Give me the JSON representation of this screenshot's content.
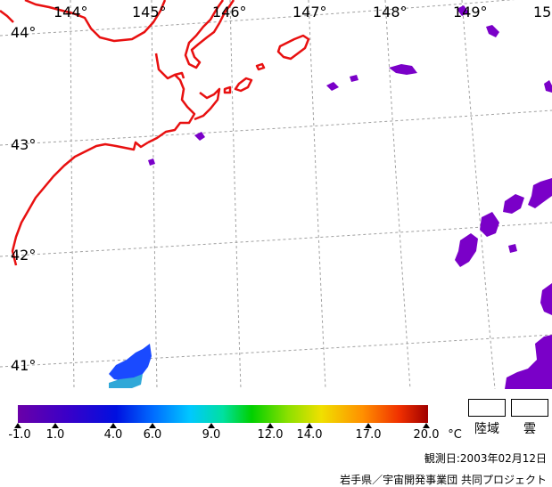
{
  "map": {
    "lon_labels": [
      "144°",
      "145°",
      "146°",
      "147°",
      "148°",
      "149°",
      "15"
    ],
    "lat_labels": [
      "44°",
      "43°",
      "42°",
      "41°"
    ]
  },
  "colorbar": {
    "ticks": [
      "-1.0",
      "1.0",
      "4.0",
      "6.0",
      "9.0",
      "12.0",
      "14.0",
      "17.0",
      "20.0"
    ],
    "unit": "°C",
    "colors": [
      "#6a00a8",
      "#0010e0",
      "#006cff",
      "#00c8ff",
      "#00d000",
      "#f0e000",
      "#ff9000",
      "#a00000"
    ]
  },
  "legend": {
    "land_label": "陸域",
    "cloud_label": "雲"
  },
  "footer": {
    "observation_date": "観測日:2003年02月12日",
    "credit": "岩手県／宇宙開発事業団 共同プロジェクト"
  },
  "colors": {
    "coastline": "#e81010",
    "grid": "#a0a0a0",
    "cloud_purple": "#7a00c8",
    "sst_blue": "#1a4aff",
    "sst_cyan": "#30a8d8"
  }
}
